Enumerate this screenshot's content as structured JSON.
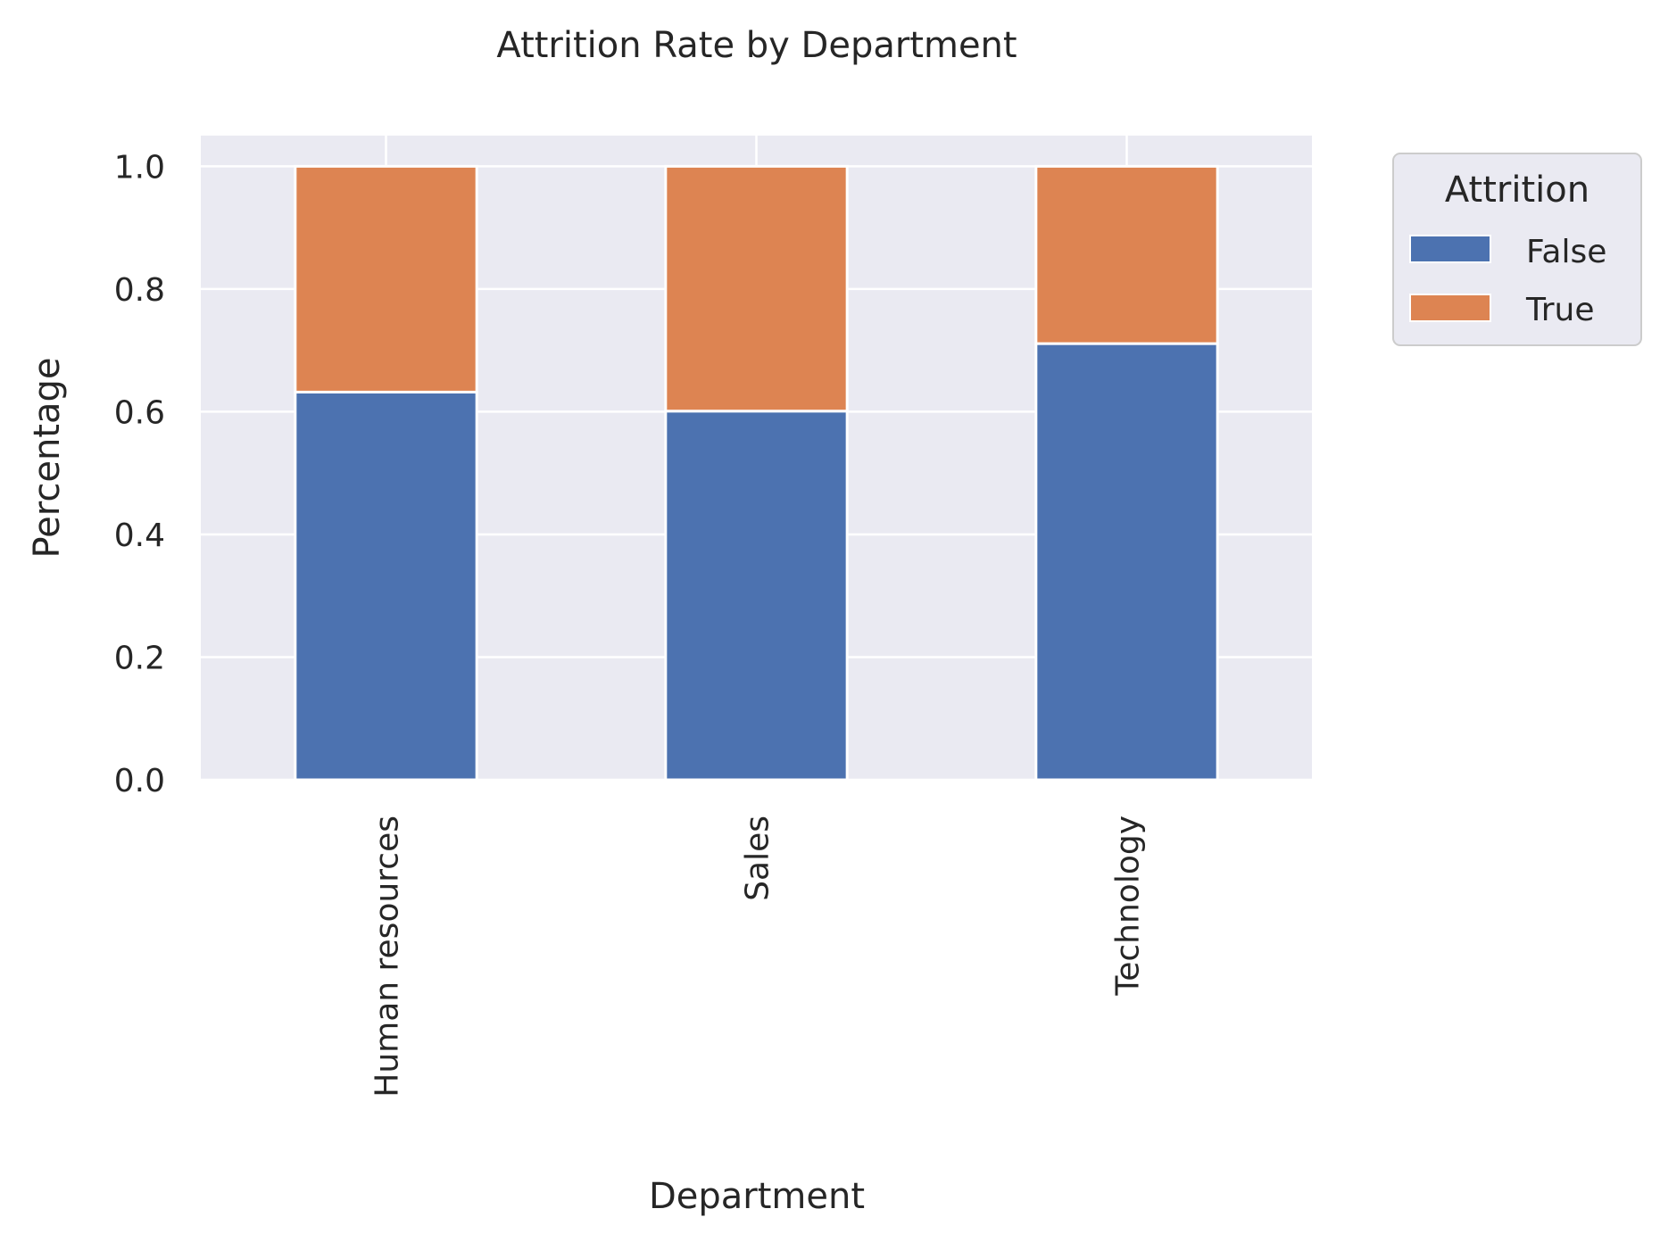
{
  "chart_data": {
    "type": "bar",
    "stacked": true,
    "title": "Attrition Rate by Department",
    "xlabel": "Department",
    "ylabel": "Percentage",
    "categories": [
      "Human resources",
      "Sales",
      "Technology"
    ],
    "series": [
      {
        "name": "False",
        "values": [
          0.632,
          0.601,
          0.711
        ],
        "color": "#4c72b0"
      },
      {
        "name": "True",
        "values": [
          0.368,
          0.399,
          0.289
        ],
        "color": "#dd8452"
      }
    ],
    "ylim": [
      0,
      1.05
    ],
    "yticks": [
      "0.0",
      "0.2",
      "0.4",
      "0.6",
      "0.8",
      "1.0"
    ],
    "grid": true,
    "background": "#eaeaf2",
    "legend": {
      "title": "Attrition",
      "placement": "outside-top-right"
    }
  }
}
